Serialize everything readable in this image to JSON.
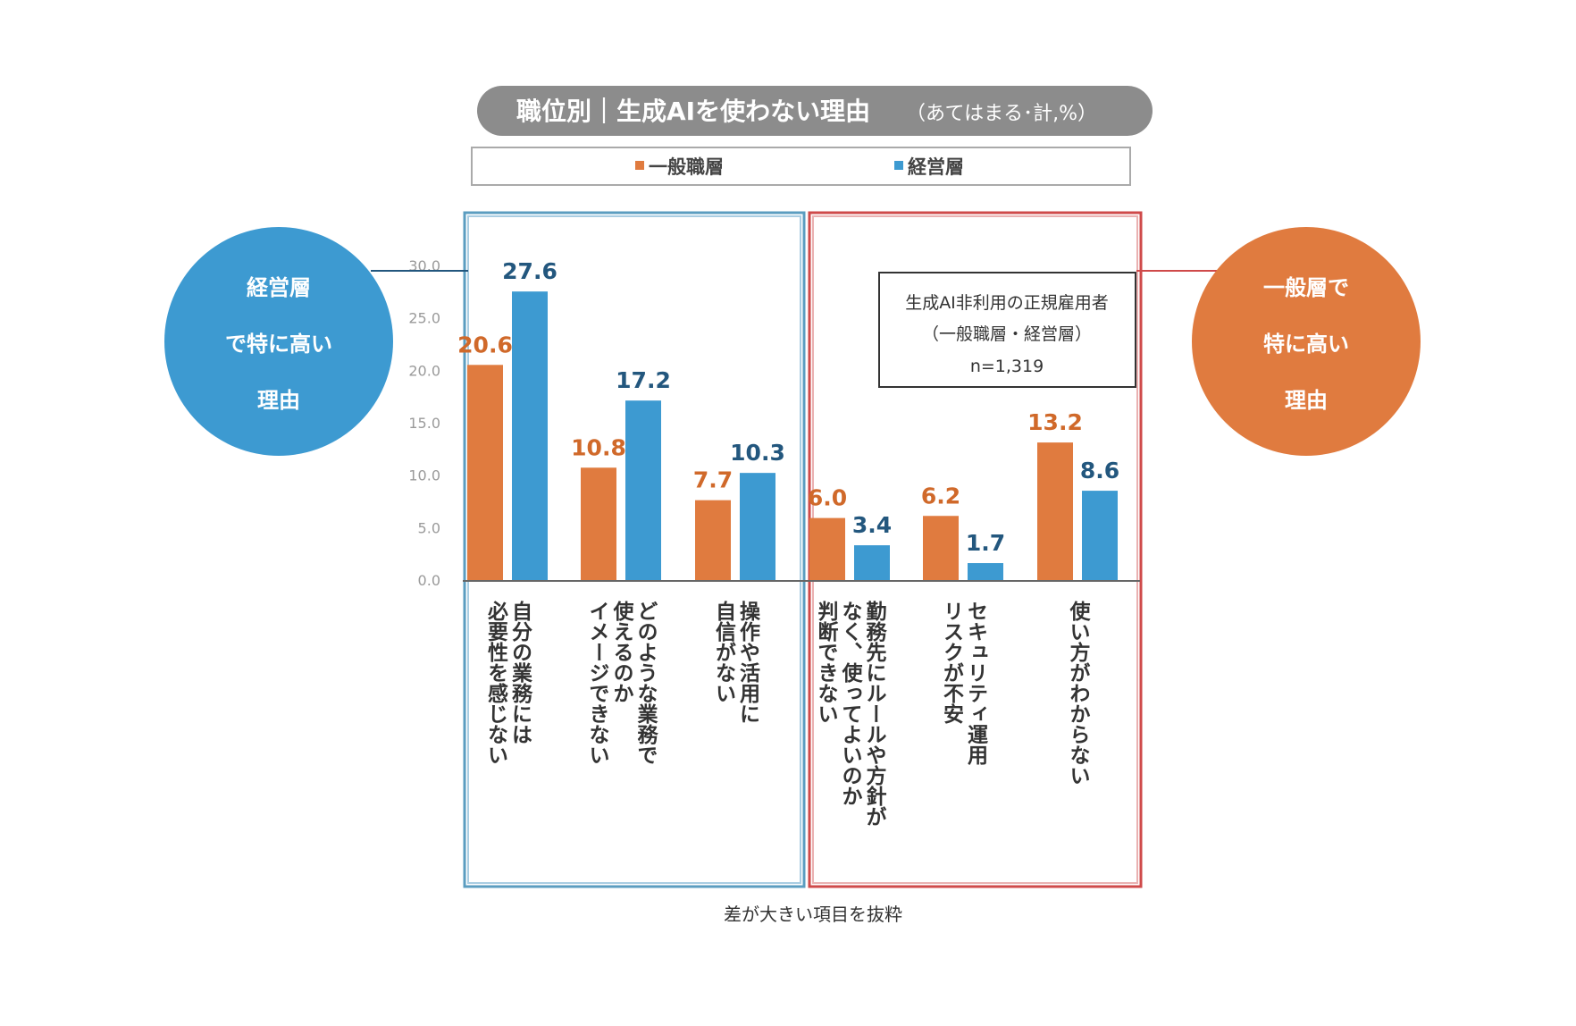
{
  "chart_data": {
    "type": "bar",
    "title_main": "職位別｜生成AIを使わない理由",
    "title_sub": "（あてはまる･計,%）",
    "y_ticks": [
      "30.0",
      "25.0",
      "20.0",
      "15.0",
      "10.0",
      "5.0",
      "0.0"
    ],
    "ylim": [
      0,
      30
    ],
    "legend": [
      "一般職層",
      "経営層"
    ],
    "categories": [
      [
        "自分の業務には",
        "必要性を感じない"
      ],
      [
        "どのような業務で",
        "使えるのか",
        "イメージできない"
      ],
      [
        "操作や活用に",
        "自信がない"
      ],
      [
        "勤務先にルールや方針が",
        "なく、使ってよいのか",
        "判断できない"
      ],
      [
        "セキュリティ運用",
        "リスクが不安"
      ],
      [
        "使い方がわからない"
      ]
    ],
    "series": [
      {
        "name": "一般職層",
        "values": [
          20.6,
          10.8,
          7.7,
          6.0,
          6.2,
          13.2
        ],
        "labels": [
          "20.6",
          "10.8",
          "7.7",
          "6.0",
          "6.2",
          "13.2"
        ]
      },
      {
        "name": "経営層",
        "values": [
          27.6,
          17.2,
          10.3,
          3.4,
          1.7,
          8.6
        ],
        "labels": [
          "27.6",
          "17.2",
          "10.3",
          "3.4",
          "1.7",
          "8.6"
        ]
      }
    ],
    "annotations": {
      "left_circle": [
        "経営層",
        "で特に高い",
        "理由"
      ],
      "right_circle": [
        "一般層で",
        "特に高い",
        "理由"
      ],
      "note": [
        "生成AI非利用の正規雇用者",
        "（一般職層・経営層）",
        "n=1,319"
      ],
      "footnote": "差が大きい項目を抜粋"
    }
  },
  "colors": {
    "general": "#e07b3f",
    "executive": "#3d9ad1",
    "label_general": "#d0692a",
    "label_executive": "#23577e",
    "blue_box": "#5b9dc0",
    "red_box": "#cf4a4a",
    "pill": "#8c8c8c"
  }
}
